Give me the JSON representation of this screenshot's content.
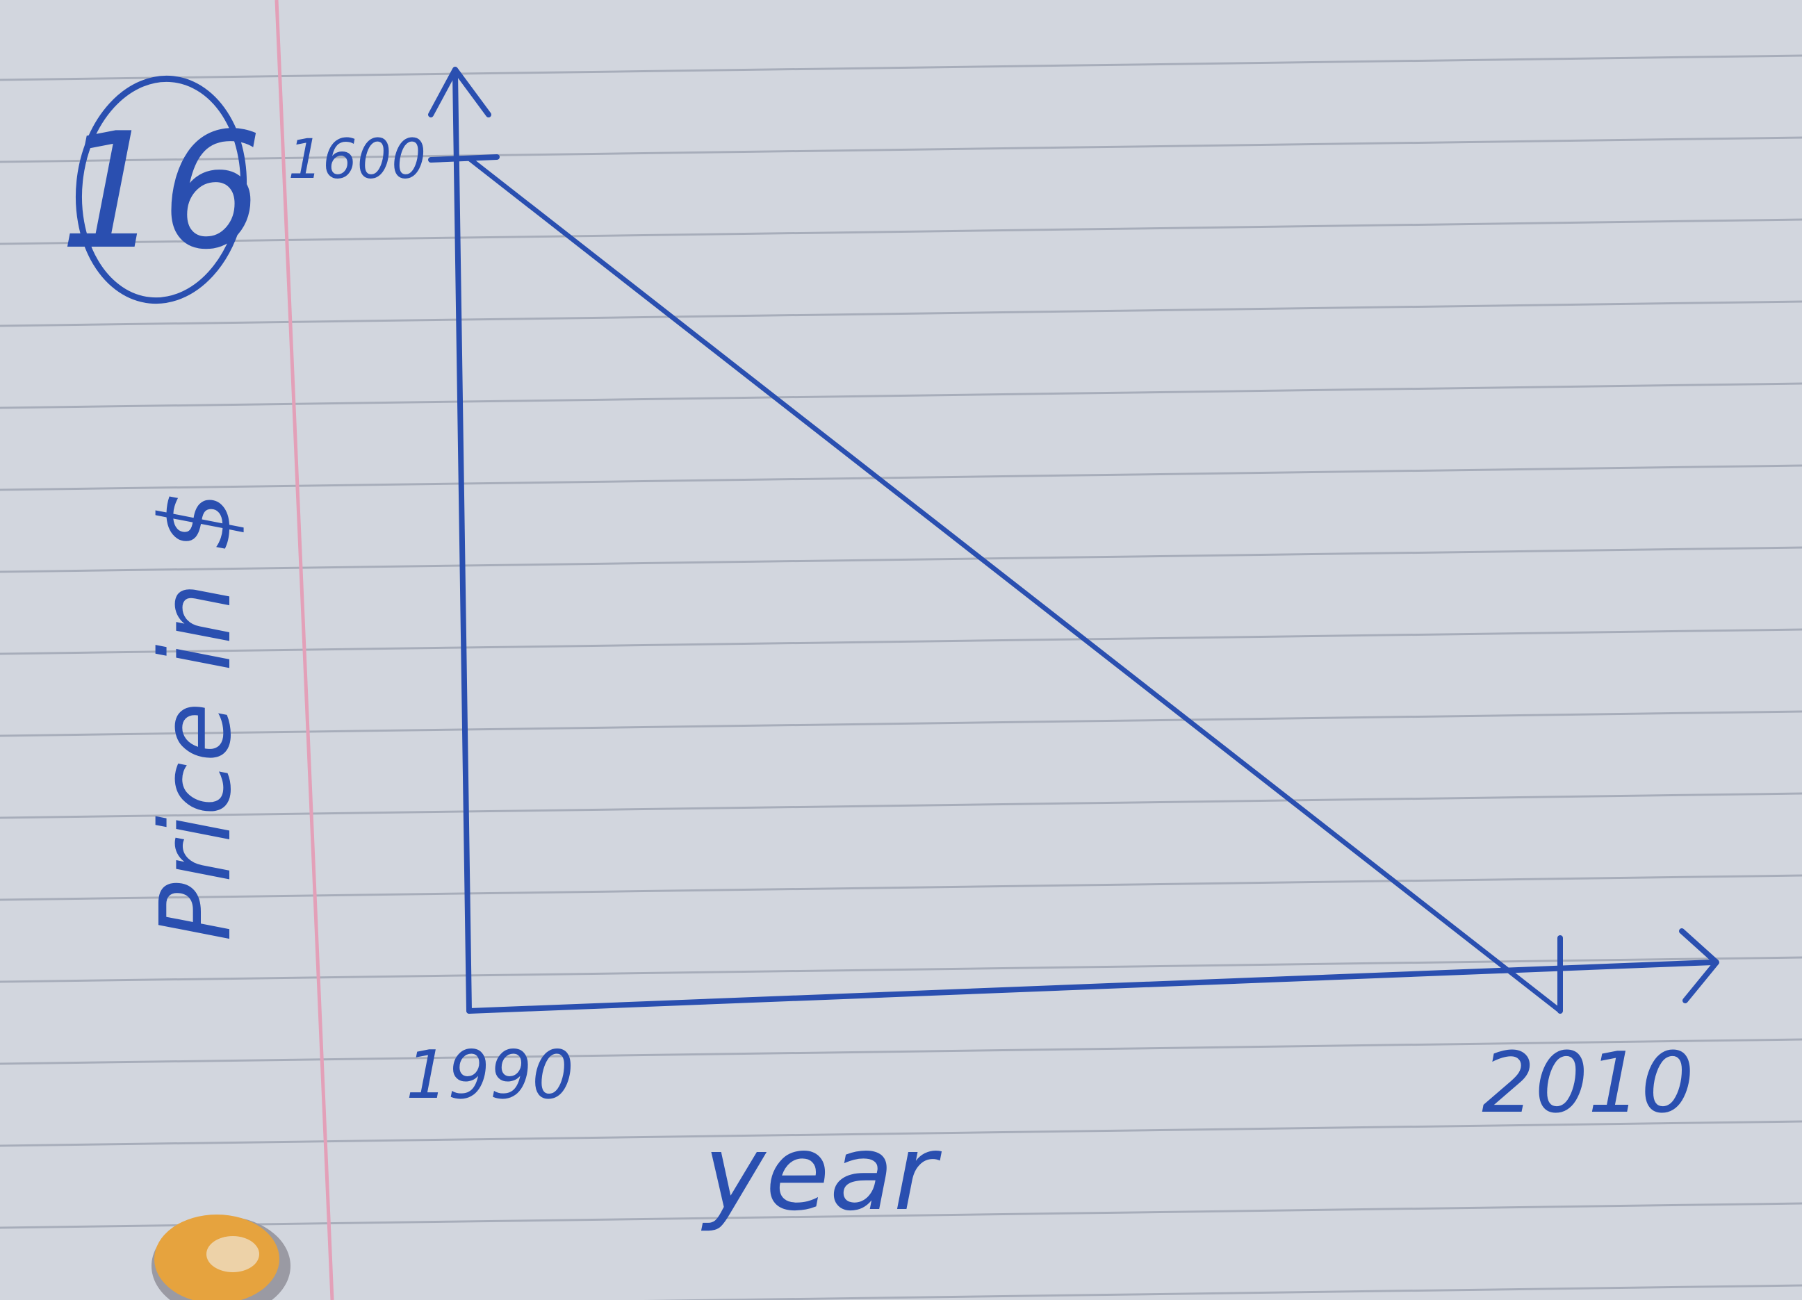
{
  "problem_number": "16",
  "colors": {
    "ink": "#2a4fb0",
    "paper": "#d2d6de",
    "rule_line": "#a7adba",
    "margin_line": "#e3a0b8",
    "punch_hole": "#e6a33e"
  },
  "chart_data": {
    "type": "line",
    "xlabel": "year",
    "ylabel": "Price in $",
    "x_ticks": [
      {
        "value": 1990,
        "label": "1990"
      },
      {
        "value": 2010,
        "label": "2010"
      }
    ],
    "y_ticks": [
      {
        "value": 1600,
        "label": "1600"
      }
    ],
    "xlim": [
      1990,
      2010
    ],
    "ylim": [
      0,
      1600
    ],
    "series": [
      {
        "x": [
          1990,
          2010
        ],
        "y": [
          1600,
          0
        ]
      }
    ],
    "axis_arrows": true,
    "grid": false,
    "legend": "none"
  }
}
